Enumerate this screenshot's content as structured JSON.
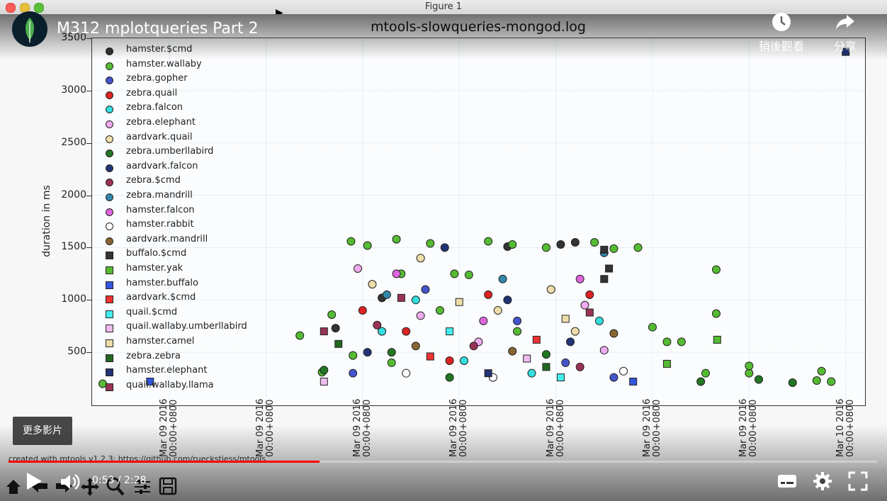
{
  "window": {
    "title": "Figure 1"
  },
  "video": {
    "title": "M312 mplotqueries Part 2",
    "watch_later_label": "稍後觀看",
    "share_label": "分享",
    "more_videos_label": "更多影片",
    "time": "0:53 / 2:28",
    "progress_fraction": 0.3581,
    "colors": {
      "progress": "#ff0000",
      "avatar_leaf": "#4caf50"
    }
  },
  "footer": {
    "created_text": "created with mtools v1.2.3: https://github.com/rueckstiess/mtools"
  },
  "icons": {
    "toolbar": [
      "home-icon",
      "back-arrow-icon",
      "forward-arrow-icon",
      "pan-icon",
      "zoom-icon",
      "configure-subplots-icon",
      "save-icon"
    ],
    "player": [
      "play-icon",
      "volume-icon",
      "subtitles-icon",
      "settings-gear-icon",
      "fullscreen-icon",
      "clock-icon",
      "share-icon",
      "leaf-logo-icon"
    ]
  },
  "chart_data": {
    "type": "scatter",
    "title": "mtools-slowqueries-mongod.log",
    "ylabel": "duration in ms",
    "xlabel": "",
    "ylim": [
      0,
      3500
    ],
    "xlim": [
      -0.8,
      7.2
    ],
    "yticks": [
      500,
      1000,
      1500,
      2000,
      2500,
      3000,
      3500
    ],
    "xticks": [
      {
        "pos": 0,
        "label": "Mar 09 2016\n00:00+0800"
      },
      {
        "pos": 1,
        "label": "Mar 09 2016\n00:00+0800"
      },
      {
        "pos": 2,
        "label": "Mar 09 2016\n00:00+0800"
      },
      {
        "pos": 3,
        "label": "Mar 09 2016\n00:00+0800"
      },
      {
        "pos": 4,
        "label": "Mar 09 2016\n00:00+0800"
      },
      {
        "pos": 5,
        "label": "Mar 09 2016\n00:00+0800"
      },
      {
        "pos": 6,
        "label": "Mar 09 2016\n00:00+0800"
      },
      {
        "pos": 7,
        "label": "Mar 10 2016\n00:00+0800"
      }
    ],
    "grid": true,
    "legend_position": "top-left",
    "series": [
      {
        "name": "hamster.$cmd",
        "marker": "circle",
        "color": "#333333",
        "points": [
          [
            1.72,
            730
          ],
          [
            2.2,
            1020
          ],
          [
            4.05,
            1530
          ],
          [
            4.2,
            1550
          ],
          [
            3.5,
            1510
          ]
        ]
      },
      {
        "name": "hamster.wallaby",
        "marker": "circle",
        "color": "#55bb33",
        "points": [
          [
            -0.69,
            200
          ],
          [
            1.35,
            660
          ],
          [
            1.58,
            310
          ],
          [
            1.68,
            860
          ],
          [
            1.88,
            1560
          ],
          [
            2.05,
            1520
          ],
          [
            2.35,
            1580
          ],
          [
            2.4,
            1250
          ],
          [
            2.95,
            1250
          ],
          [
            3.3,
            1560
          ],
          [
            3.55,
            1530
          ],
          [
            4.4,
            1550
          ],
          [
            4.85,
            1500
          ],
          [
            5,
            740
          ],
          [
            5.15,
            600
          ],
          [
            5.55,
            300
          ],
          [
            5.66,
            1290
          ],
          [
            5.66,
            870
          ],
          [
            6,
            300
          ],
          [
            6,
            370
          ],
          [
            6.75,
            320
          ],
          [
            6.7,
            230
          ],
          [
            6.85,
            220
          ],
          [
            2.7,
            1540
          ],
          [
            3.1,
            1240
          ],
          [
            3.9,
            1500
          ],
          [
            4.6,
            1490
          ],
          [
            2.8,
            900
          ],
          [
            3.6,
            700
          ],
          [
            5.3,
            600
          ],
          [
            1.9,
            470
          ],
          [
            2.3,
            400
          ]
        ]
      },
      {
        "name": "zebra.gopher",
        "marker": "circle",
        "color": "#4455cc",
        "points": [
          [
            1.9,
            300
          ],
          [
            2.65,
            1100
          ],
          [
            3.6,
            800
          ],
          [
            4.1,
            400
          ],
          [
            4.6,
            260
          ]
        ]
      },
      {
        "name": "zebra.quail",
        "marker": "circle",
        "color": "#dd2222",
        "points": [
          [
            2,
            900
          ],
          [
            2.45,
            700
          ],
          [
            3.3,
            1050
          ],
          [
            4.35,
            1050
          ],
          [
            2.9,
            420
          ]
        ]
      },
      {
        "name": "zebra.falcon",
        "marker": "circle",
        "color": "#33dddd",
        "points": [
          [
            2.2,
            700
          ],
          [
            2.55,
            1000
          ],
          [
            3.05,
            420
          ],
          [
            4.45,
            800
          ],
          [
            3.75,
            300
          ]
        ]
      },
      {
        "name": "zebra.elephant",
        "marker": "circle",
        "color": "#eeaaee",
        "points": [
          [
            1.95,
            1300
          ],
          [
            2.6,
            850
          ],
          [
            3.2,
            600
          ],
          [
            4.3,
            950
          ],
          [
            4.5,
            520
          ]
        ]
      },
      {
        "name": "aardvark.quail",
        "marker": "circle",
        "color": "#eeddaa",
        "points": [
          [
            2.1,
            1150
          ],
          [
            2.6,
            1400
          ],
          [
            3.4,
            900
          ],
          [
            4.2,
            700
          ],
          [
            3.95,
            1100
          ]
        ]
      },
      {
        "name": "zebra.umberllabird",
        "marker": "circle",
        "color": "#227722",
        "points": [
          [
            1.6,
            330
          ],
          [
            2.3,
            500
          ],
          [
            2.9,
            260
          ],
          [
            3.9,
            480
          ],
          [
            5.5,
            220
          ],
          [
            6.1,
            240
          ],
          [
            6.45,
            210
          ]
        ]
      },
      {
        "name": "aardvark.falcon",
        "marker": "circle",
        "color": "#223377",
        "points": [
          [
            2.05,
            500
          ],
          [
            2.85,
            1500
          ],
          [
            3.5,
            1000
          ],
          [
            4.15,
            600
          ]
        ]
      },
      {
        "name": "zebra.$cmd",
        "marker": "circle",
        "color": "#993355",
        "points": [
          [
            2.15,
            760
          ],
          [
            3.15,
            560
          ],
          [
            4.25,
            360
          ]
        ]
      },
      {
        "name": "zebra.mandrill",
        "marker": "circle",
        "color": "#3388aa",
        "points": [
          [
            2.25,
            1050
          ],
          [
            3.45,
            1200
          ],
          [
            4.5,
            1450
          ]
        ]
      },
      {
        "name": "hamster.falcon",
        "marker": "circle",
        "color": "#dd66dd",
        "points": [
          [
            2.35,
            1250
          ],
          [
            3.25,
            800
          ],
          [
            4.25,
            1200
          ]
        ]
      },
      {
        "name": "hamster.rabbit",
        "marker": "circle",
        "color": "#ffffff",
        "points": [
          [
            2.45,
            300
          ],
          [
            3.35,
            260
          ],
          [
            4.7,
            320
          ]
        ]
      },
      {
        "name": "aardvark.mandrill",
        "marker": "circle",
        "color": "#886633",
        "points": [
          [
            2.55,
            560
          ],
          [
            3.55,
            510
          ],
          [
            4.6,
            680
          ]
        ]
      },
      {
        "name": "buffalo.$cmd",
        "marker": "square",
        "color": "#333333",
        "points": [
          [
            4.5,
            1480
          ],
          [
            4.55,
            1300
          ],
          [
            4.5,
            1200
          ]
        ]
      },
      {
        "name": "hamster.yak",
        "marker": "square",
        "color": "#55bb33",
        "points": [
          [
            5.67,
            620
          ],
          [
            5.15,
            390
          ]
        ]
      },
      {
        "name": "hamster.buffalo",
        "marker": "square",
        "color": "#3355dd",
        "points": [
          [
            -0.2,
            220
          ],
          [
            4.8,
            220
          ]
        ]
      },
      {
        "name": "aardvark.$cmd",
        "marker": "square",
        "color": "#ee3333",
        "points": [
          [
            2.7,
            460
          ],
          [
            3.8,
            620
          ]
        ]
      },
      {
        "name": "quail.$cmd",
        "marker": "square",
        "color": "#44eeee",
        "points": [
          [
            2.9,
            700
          ],
          [
            4.05,
            260
          ]
        ]
      },
      {
        "name": "quail.wallaby.umberllabird",
        "marker": "square",
        "color": "#eebbee",
        "points": [
          [
            1.6,
            220
          ],
          [
            3.7,
            440
          ]
        ]
      },
      {
        "name": "hamster.camel",
        "marker": "square",
        "color": "#eeddaa",
        "points": [
          [
            3,
            980
          ],
          [
            4.1,
            820
          ]
        ]
      },
      {
        "name": "zebra.zebra",
        "marker": "square",
        "color": "#226622",
        "points": [
          [
            1.75,
            580
          ],
          [
            3.9,
            360
          ]
        ]
      },
      {
        "name": "hamster.elephant",
        "marker": "square",
        "color": "#223377",
        "points": [
          [
            7,
            3370
          ],
          [
            3.3,
            300
          ]
        ]
      },
      {
        "name": "quail.wallaby.llama",
        "marker": "square",
        "color": "#993355",
        "points": [
          [
            1.6,
            700
          ],
          [
            2.4,
            1020
          ],
          [
            4.35,
            880
          ]
        ]
      }
    ]
  }
}
